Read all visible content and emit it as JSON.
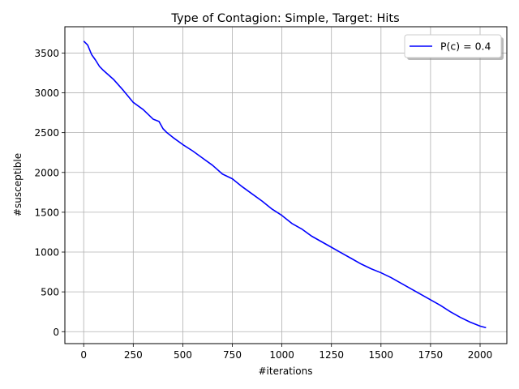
{
  "chart_data": {
    "type": "line",
    "title": "Type of Contagion: Simple, Target: Hits",
    "xlabel": "#iterations",
    "ylabel": "#susceptible",
    "xlim": [
      -95,
      2135
    ],
    "ylim": [
      -150,
      3830
    ],
    "xticks": [
      0,
      250,
      500,
      750,
      1000,
      1250,
      1500,
      1750,
      2000
    ],
    "yticks": [
      0,
      500,
      1000,
      1500,
      2000,
      2500,
      3000,
      3500
    ],
    "grid": true,
    "legend_position": "top-right",
    "series": [
      {
        "name": "P(c) = 0.4",
        "color": "#0000ff",
        "x": [
          0,
          20,
          40,
          60,
          80,
          100,
          150,
          200,
          250,
          300,
          350,
          380,
          400,
          420,
          450,
          500,
          550,
          600,
          650,
          700,
          750,
          800,
          850,
          900,
          950,
          1000,
          1050,
          1100,
          1150,
          1200,
          1250,
          1300,
          1350,
          1400,
          1450,
          1500,
          1550,
          1600,
          1650,
          1700,
          1750,
          1800,
          1850,
          1900,
          1950,
          2000,
          2030
        ],
        "y": [
          3650,
          3600,
          3480,
          3410,
          3330,
          3280,
          3170,
          3030,
          2880,
          2790,
          2670,
          2640,
          2550,
          2500,
          2440,
          2350,
          2270,
          2180,
          2090,
          1980,
          1920,
          1820,
          1730,
          1640,
          1540,
          1460,
          1360,
          1290,
          1200,
          1130,
          1060,
          990,
          920,
          850,
          790,
          740,
          680,
          610,
          540,
          470,
          400,
          330,
          250,
          180,
          120,
          70,
          50
        ]
      }
    ]
  }
}
